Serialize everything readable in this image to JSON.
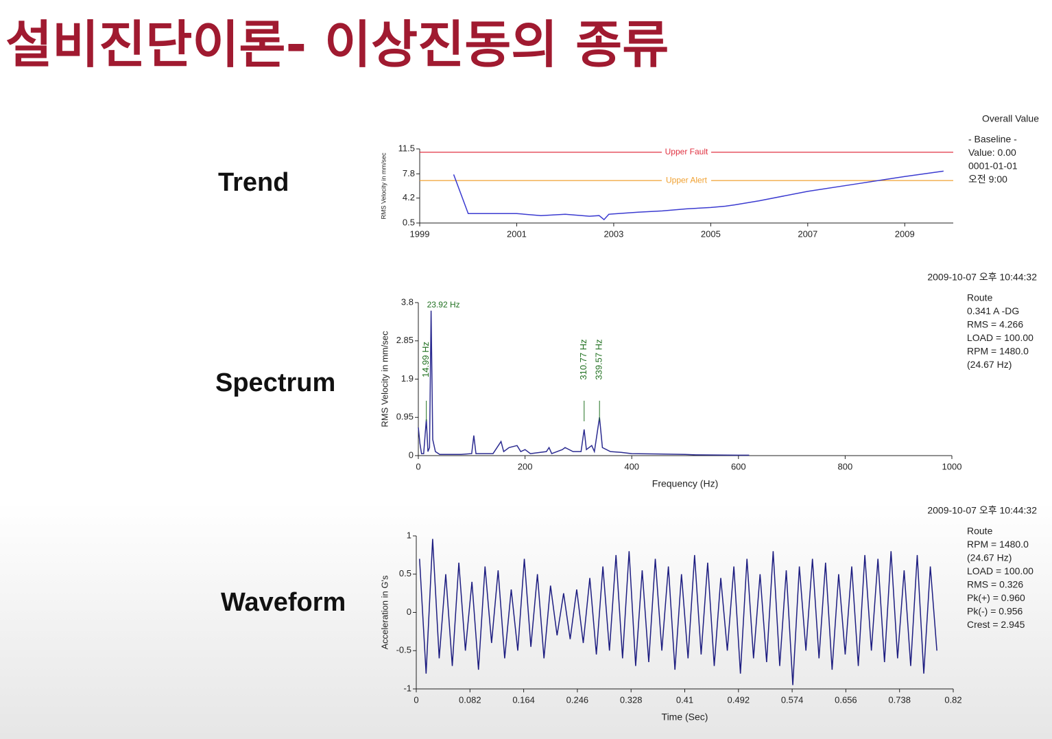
{
  "title": "설비진단이론- 이상진동의 종류",
  "chart_data": [
    {
      "type": "line",
      "label": "Trend",
      "ylabel": "RMS Velocity in mm/sec",
      "info": [
        "Overall Value",
        "- Baseline -",
        "Value: 0.00",
        "0001-01-01",
        "오전 9:00"
      ],
      "xlim": [
        1999,
        2010
      ],
      "xticks": [
        1999,
        2001,
        2003,
        2005,
        2007,
        2009
      ],
      "ylim": [
        0.5,
        11.5
      ],
      "yticks": [
        0.5,
        4.2,
        7.8,
        11.5
      ],
      "thresholds": [
        {
          "label": "Upper Fault",
          "value": 11.0,
          "color": "#e03040"
        },
        {
          "label": "Upper Alert",
          "value": 6.8,
          "color": "#f0a030"
        }
      ],
      "x": [
        1999.7,
        2000.0,
        2001.0,
        2001.5,
        2002.0,
        2002.5,
        2002.7,
        2002.8,
        2002.9,
        2003.5,
        2004.0,
        2004.5,
        2005.0,
        2005.3,
        2005.5,
        2006.0,
        2007.0,
        2008.0,
        2009.0,
        2009.8
      ],
      "series": [
        {
          "name": "Overall Value",
          "color": "#3a3ad0",
          "values": [
            7.7,
            1.9,
            1.9,
            1.6,
            1.8,
            1.5,
            1.6,
            1.0,
            1.8,
            2.1,
            2.3,
            2.6,
            2.8,
            3.0,
            3.2,
            3.8,
            5.2,
            6.3,
            7.4,
            8.2
          ]
        }
      ]
    },
    {
      "type": "line",
      "label": "Spectrum",
      "ylabel": "RMS Velocity in mm/sec",
      "xlabel": "Frequency (Hz)",
      "timestamp": "2009-10-07 오후 10:44:32",
      "info": [
        "Route",
        "0.341 A -DG",
        "RMS = 4.266",
        "LOAD = 100.00",
        "RPM = 1480.0",
        "(24.67 Hz)"
      ],
      "xlim": [
        0,
        1000
      ],
      "xticks": [
        0,
        200,
        400,
        600,
        800,
        1000
      ],
      "ylim": [
        0,
        3.8
      ],
      "yticks": [
        0,
        0.95,
        1.9,
        2.85,
        3.8
      ],
      "annotations": [
        {
          "x": 23.92,
          "label": "23.92 Hz",
          "orientation": "horizontal"
        },
        {
          "x": 14.99,
          "label": "14.99 Hz",
          "orientation": "vertical"
        },
        {
          "x": 310.77,
          "label": "310.77 Hz",
          "orientation": "vertical"
        },
        {
          "x": 339.57,
          "label": "339.57 Hz",
          "orientation": "vertical"
        }
      ],
      "x": [
        0,
        3,
        6,
        10,
        14.99,
        18,
        21,
        23.92,
        27,
        32,
        40,
        60,
        80,
        100,
        104,
        108,
        140,
        155,
        160,
        170,
        185,
        192,
        200,
        210,
        240,
        245,
        250,
        270,
        275,
        290,
        305,
        310.77,
        315,
        325,
        330,
        339.57,
        345,
        360,
        380,
        400,
        450,
        500,
        520,
        600,
        620
      ],
      "series": [
        {
          "name": "Spectrum",
          "color": "#2a2a90",
          "values": [
            0.7,
            0.3,
            0.05,
            0.05,
            0.9,
            0.1,
            0.2,
            3.6,
            0.4,
            0.1,
            0.03,
            0.03,
            0.03,
            0.05,
            0.5,
            0.05,
            0.05,
            0.35,
            0.1,
            0.2,
            0.25,
            0.1,
            0.15,
            0.05,
            0.1,
            0.2,
            0.05,
            0.15,
            0.2,
            0.1,
            0.1,
            0.65,
            0.15,
            0.25,
            0.1,
            0.95,
            0.2,
            0.1,
            0.08,
            0.05,
            0.04,
            0.03,
            0.02,
            0.01,
            0.01
          ]
        }
      ]
    },
    {
      "type": "line",
      "label": "Waveform",
      "ylabel": "Acceleration in G's",
      "xlabel": "Time (Sec)",
      "timestamp": "2009-10-07 오후 10:44:32",
      "info": [
        "Route",
        "RPM = 1480.0",
        "(24.67 Hz)",
        "LOAD = 100.00",
        "RMS = 0.326",
        "Pk(+) = 0.960",
        "Pk(-) = 0.956",
        "Crest = 2.945"
      ],
      "xlim": [
        0,
        0.82
      ],
      "xticks": [
        0,
        0.082,
        0.164,
        0.246,
        0.328,
        0.41,
        0.492,
        0.574,
        0.656,
        0.738,
        0.82
      ],
      "ylim": [
        -1,
        1
      ],
      "yticks": [
        -1,
        -0.5,
        0,
        0.5,
        1
      ],
      "x": [
        0.005,
        0.015,
        0.025,
        0.035,
        0.045,
        0.055,
        0.065,
        0.075,
        0.085,
        0.095,
        0.105,
        0.115,
        0.125,
        0.135,
        0.145,
        0.155,
        0.165,
        0.175,
        0.185,
        0.195,
        0.205,
        0.215,
        0.225,
        0.235,
        0.245,
        0.255,
        0.265,
        0.275,
        0.285,
        0.295,
        0.305,
        0.315,
        0.325,
        0.335,
        0.345,
        0.355,
        0.365,
        0.375,
        0.385,
        0.395,
        0.405,
        0.415,
        0.425,
        0.435,
        0.445,
        0.455,
        0.465,
        0.475,
        0.485,
        0.495,
        0.505,
        0.515,
        0.525,
        0.535,
        0.545,
        0.555,
        0.565,
        0.575,
        0.585,
        0.595,
        0.605,
        0.615,
        0.625,
        0.635,
        0.645,
        0.655,
        0.665,
        0.675,
        0.685,
        0.695,
        0.705,
        0.715,
        0.725,
        0.735,
        0.745,
        0.755,
        0.765,
        0.775,
        0.785,
        0.795
      ],
      "series": [
        {
          "name": "Waveform",
          "color": "#1c1c80",
          "values": [
            0.7,
            -0.8,
            0.96,
            -0.6,
            0.5,
            -0.7,
            0.65,
            -0.5,
            0.4,
            -0.75,
            0.6,
            -0.4,
            0.55,
            -0.6,
            0.3,
            -0.5,
            0.7,
            -0.45,
            0.5,
            -0.6,
            0.35,
            -0.3,
            0.25,
            -0.35,
            0.3,
            -0.4,
            0.45,
            -0.55,
            0.6,
            -0.5,
            0.75,
            -0.6,
            0.8,
            -0.7,
            0.55,
            -0.65,
            0.7,
            -0.5,
            0.6,
            -0.75,
            0.5,
            -0.6,
            0.75,
            -0.55,
            0.65,
            -0.7,
            0.45,
            -0.5,
            0.6,
            -0.8,
            0.7,
            -0.6,
            0.5,
            -0.65,
            0.8,
            -0.7,
            0.55,
            -0.95,
            0.6,
            -0.5,
            0.7,
            -0.6,
            0.65,
            -0.75,
            0.5,
            -0.55,
            0.6,
            -0.7,
            0.75,
            -0.5,
            0.7,
            -0.65,
            0.8,
            -0.6,
            0.55,
            -0.7,
            0.75,
            -0.8,
            0.6,
            -0.5
          ]
        }
      ]
    }
  ]
}
